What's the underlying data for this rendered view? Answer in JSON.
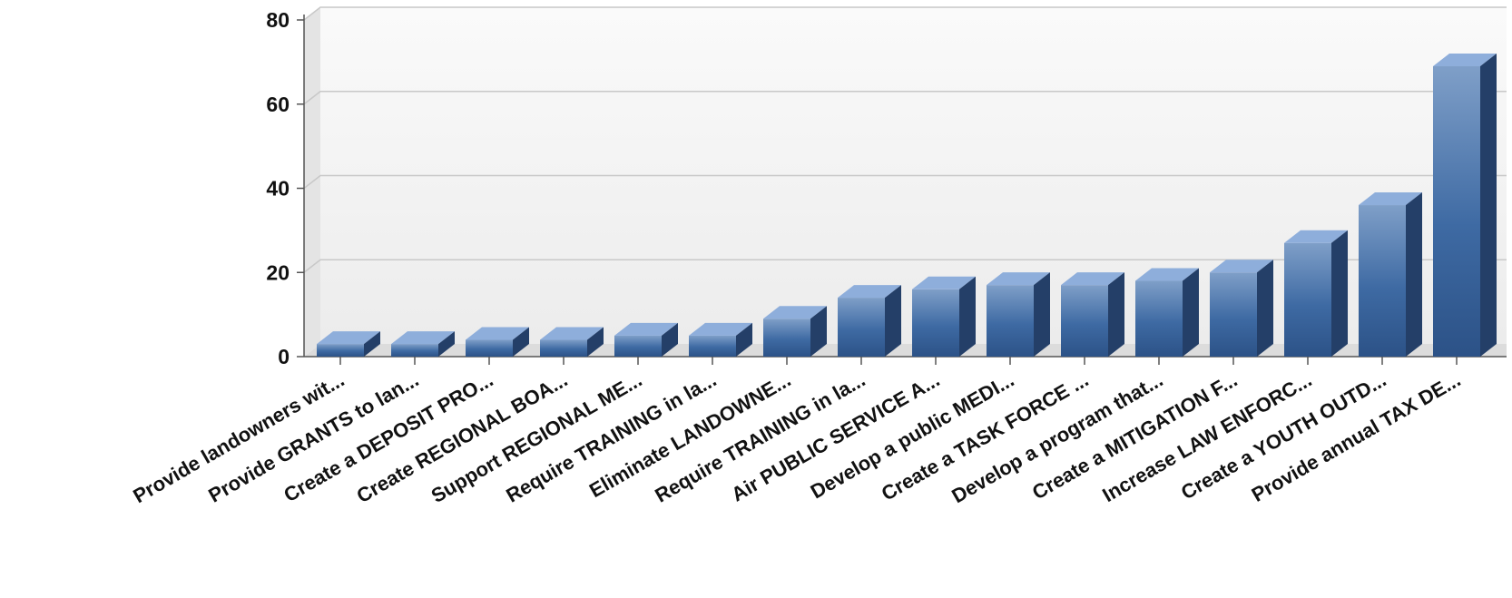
{
  "chart_data": {
    "type": "bar",
    "style": "3d",
    "categories": [
      "Provide landowners wit...",
      "Provide GRANTS to lan...",
      "Create a DEPOSIT PRO...",
      "Create REGIONAL BOA...",
      "Support REGIONAL ME...",
      "Require TRAINING in la...",
      "Eliminate LANDOWNE...",
      "Require TRAINING in la...",
      "Air PUBLIC SERVICE A...",
      "Develop a public MEDI...",
      "Create a TASK FORCE ...",
      "Develop a program that...",
      "Create a MITIGATION F...",
      "Increase LAW ENFORC...",
      "Create a YOUTH OUTD...",
      "Provide annual TAX DE..."
    ],
    "values": [
      3,
      3,
      4,
      4,
      5,
      5,
      9,
      14,
      16,
      17,
      17,
      18,
      20,
      27,
      36,
      69
    ],
    "title": "",
    "xlabel": "",
    "ylabel": "",
    "ylim": [
      0,
      80
    ],
    "yticks": [
      0,
      20,
      40,
      60,
      80
    ],
    "grid": true,
    "legend": "none",
    "colors": {
      "bar_front_top": "#7f9fc8",
      "bar_front_mid": "#3e6aa3",
      "bar_front_bottom": "#2c5287",
      "bar_top": "#8eaedb",
      "bar_side": "#243f68",
      "grid": "#c8c8c8",
      "plot_bg": "#f4f4f4",
      "axis": "#555555"
    }
  }
}
